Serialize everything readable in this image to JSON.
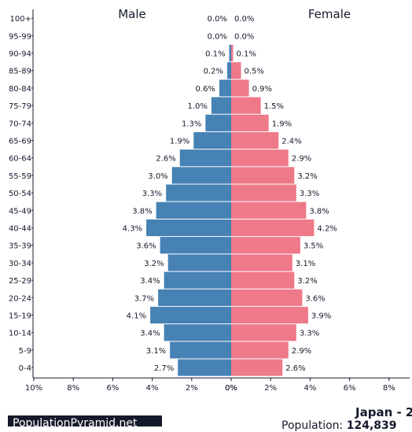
{
  "chart_data": {
    "type": "bar",
    "orientation": "horizontal",
    "chart_style": "population-pyramid",
    "categories": [
      "100+",
      "95-99",
      "90-94",
      "85-89",
      "80-84",
      "75-79",
      "70-74",
      "65-69",
      "60-64",
      "55-59",
      "50-54",
      "45-49",
      "40-44",
      "35-39",
      "30-34",
      "25-29",
      "20-24",
      "15-19",
      "10-14",
      "5-9",
      "0-4"
    ],
    "series": [
      {
        "name": "Male",
        "color": "#4682b4",
        "values": [
          0.0,
          0.0,
          0.1,
          0.2,
          0.6,
          1.0,
          1.3,
          1.9,
          2.6,
          3.0,
          3.3,
          3.8,
          4.3,
          3.6,
          3.2,
          3.4,
          3.7,
          4.1,
          3.4,
          3.1,
          2.7
        ],
        "labels": [
          "0.0%",
          "0.0%",
          "0.1%",
          "0.2%",
          "0.6%",
          "1.0%",
          "1.3%",
          "1.9%",
          "2.6%",
          "3.0%",
          "3.3%",
          "3.8%",
          "4.3%",
          "3.6%",
          "3.2%",
          "3.4%",
          "3.7%",
          "4.1%",
          "3.4%",
          "3.1%",
          "2.7%"
        ]
      },
      {
        "name": "Female",
        "color": "#ee7989",
        "values": [
          0.0,
          0.0,
          0.1,
          0.5,
          0.9,
          1.5,
          1.9,
          2.4,
          2.9,
          3.2,
          3.3,
          3.8,
          4.2,
          3.5,
          3.1,
          3.2,
          3.6,
          3.9,
          3.3,
          2.9,
          2.6
        ],
        "labels": [
          "0.0%",
          "0.0%",
          "0.1%",
          "0.5%",
          "0.9%",
          "1.5%",
          "1.9%",
          "2.4%",
          "2.9%",
          "3.2%",
          "3.3%",
          "3.8%",
          "4.2%",
          "3.5%",
          "3.1%",
          "3.2%",
          "3.6%",
          "3.9%",
          "3.3%",
          "2.9%",
          "2.6%"
        ]
      }
    ],
    "x_ticks_left": [
      "10%",
      "8%",
      "6%",
      "4%",
      "2%",
      "0%"
    ],
    "x_ticks_right": [
      "0%",
      "2%",
      "4%",
      "6%",
      "8%"
    ],
    "xlim": [
      0,
      10
    ],
    "grid": false,
    "legend": "titles above each half"
  },
  "footer": {
    "badge_text": "PopulationPyramid.net",
    "title": "Japan - 2",
    "population_label": "Population: ",
    "population_value": "124,839"
  }
}
